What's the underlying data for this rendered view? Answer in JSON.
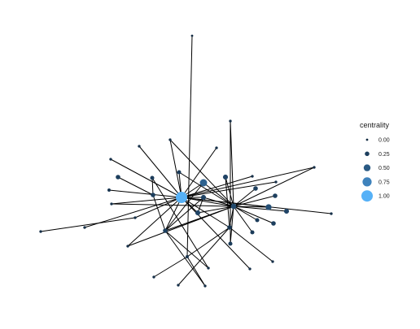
{
  "legend": {
    "title": "centrality",
    "items": [
      {
        "label": "0.00",
        "value": 0.0,
        "color": "#132B43"
      },
      {
        "label": "0.25",
        "value": 0.25,
        "color": "#1D3F5E"
      },
      {
        "label": "0.50",
        "value": 0.5,
        "color": "#2A5A84"
      },
      {
        "label": "0.75",
        "value": 0.75,
        "color": "#3E82BC"
      },
      {
        "label": "1.00",
        "value": 1.0,
        "color": "#56B1F7"
      }
    ]
  },
  "graph": {
    "nodes": [
      {
        "id": "hub",
        "centrality": 1.0
      },
      {
        "id": "a",
        "centrality": 0.55
      },
      {
        "id": "b",
        "centrality": 0.3
      },
      {
        "id": "c",
        "centrality": 0.3
      },
      {
        "id": "d",
        "centrality": 0.2
      },
      {
        "id": "e",
        "centrality": 0.25
      },
      {
        "id": "f",
        "centrality": 0.35
      },
      {
        "id": "g",
        "centrality": 0.3
      },
      {
        "id": "h",
        "centrality": 0.25
      },
      {
        "id": "i",
        "centrality": 0.2
      },
      {
        "id": "j",
        "centrality": 0.25
      },
      {
        "id": "k",
        "centrality": 0.4
      },
      {
        "id": "l",
        "centrality": 0.3
      },
      {
        "id": "m",
        "centrality": 0.25
      },
      {
        "id": "n",
        "centrality": 0.25
      },
      {
        "id": "o",
        "centrality": 0.25
      },
      {
        "id": "p",
        "centrality": 0.2
      },
      {
        "id": "q",
        "centrality": 0.2
      },
      {
        "id": "r",
        "centrality": 0.2
      },
      {
        "id": "s",
        "centrality": 0.25
      },
      {
        "id": "t",
        "centrality": 0.1
      },
      {
        "id": "u",
        "centrality": 0.05
      },
      {
        "id": "v",
        "centrality": 0.05
      },
      {
        "id": "w",
        "centrality": 0.05
      },
      {
        "id": "x",
        "centrality": 0.05
      },
      {
        "id": "y",
        "centrality": 0.1
      },
      {
        "id": "z",
        "centrality": 0.05
      },
      {
        "id": "aa",
        "centrality": 0.05
      },
      {
        "id": "ab",
        "centrality": 0.05
      },
      {
        "id": "ac",
        "centrality": 0.05
      },
      {
        "id": "ad",
        "centrality": 0.05
      },
      {
        "id": "ae",
        "centrality": 0.05
      },
      {
        "id": "af",
        "centrality": 0.05
      },
      {
        "id": "ag",
        "centrality": 0.05
      },
      {
        "id": "ah",
        "centrality": 0.05
      },
      {
        "id": "ai",
        "centrality": 0.05
      },
      {
        "id": "aj",
        "centrality": 0.05
      },
      {
        "id": "ak",
        "centrality": 0.05
      },
      {
        "id": "al",
        "centrality": 0.05
      },
      {
        "id": "am",
        "centrality": 0.05
      },
      {
        "id": "an",
        "centrality": 0.05
      },
      {
        "id": "ao",
        "centrality": 0.05
      },
      {
        "id": "ap",
        "centrality": 0.0
      },
      {
        "id": "aq",
        "centrality": 0.05
      }
    ],
    "edges": [
      [
        "hub",
        "a"
      ],
      [
        "hub",
        "d"
      ],
      [
        "hub",
        "c"
      ],
      [
        "hub",
        "f"
      ],
      [
        "hub",
        "b"
      ],
      [
        "hub",
        "k"
      ],
      [
        "hub",
        "y"
      ],
      [
        "hub",
        "af"
      ],
      [
        "hub",
        "ae"
      ],
      [
        "hub",
        "ag"
      ],
      [
        "hub",
        "ah"
      ],
      [
        "hub",
        "am"
      ],
      [
        "hub",
        "ac"
      ],
      [
        "hub",
        "aq"
      ],
      [
        "hub",
        "v"
      ],
      [
        "f",
        "a"
      ],
      [
        "f",
        "b"
      ],
      [
        "f",
        "c"
      ],
      [
        "f",
        "d"
      ],
      [
        "f",
        "g"
      ],
      [
        "f",
        "k"
      ],
      [
        "f",
        "l"
      ],
      [
        "f",
        "n"
      ],
      [
        "f",
        "o"
      ],
      [
        "f",
        "p"
      ],
      [
        "f",
        "q"
      ],
      [
        "f",
        "s"
      ],
      [
        "f",
        "ab"
      ],
      [
        "f",
        "e"
      ],
      [
        "f",
        "aa"
      ],
      [
        "f",
        "x"
      ],
      [
        "f",
        "ad"
      ],
      [
        "f",
        "ai"
      ],
      [
        "f",
        "r"
      ],
      [
        "hub",
        "e"
      ],
      [
        "hub",
        "x"
      ],
      [
        "hub",
        "aa"
      ],
      [
        "hub",
        "ad"
      ],
      [
        "hub",
        "ai"
      ],
      [
        "hub",
        "aj"
      ],
      [
        "e",
        "ak"
      ],
      [
        "e",
        "al"
      ],
      [
        "hub",
        "w"
      ],
      [
        "w",
        "u"
      ],
      [
        "e",
        "a"
      ],
      [
        "e",
        "h"
      ],
      [
        "h",
        "i"
      ],
      [
        "i",
        "ak"
      ],
      [
        "c",
        "b"
      ],
      [
        "e",
        "c"
      ],
      [
        "g",
        "s"
      ],
      [
        "s",
        "t"
      ],
      [
        "s",
        "ao"
      ],
      [
        "s",
        "an"
      ],
      [
        "t",
        "z"
      ],
      [
        "t",
        "al"
      ],
      [
        "t",
        "ap"
      ],
      [
        "r",
        "ab"
      ],
      [
        "j",
        "h"
      ],
      [
        "m",
        "f"
      ]
    ]
  }
}
